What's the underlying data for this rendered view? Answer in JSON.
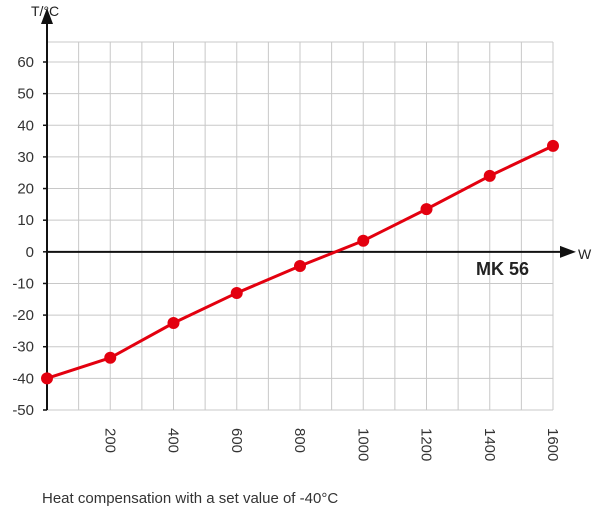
{
  "chart_data": {
    "type": "line",
    "x": [
      0,
      200,
      400,
      600,
      800,
      1000,
      1200,
      1400,
      1600
    ],
    "series": [
      {
        "values": [
          -40,
          -33.5,
          -22.5,
          -13,
          -4.5,
          3.5,
          13.5,
          24,
          33.5
        ]
      }
    ],
    "x_tick_labels": [
      "200",
      "400",
      "600",
      "800",
      "1000",
      "1200",
      "1400",
      "1600"
    ],
    "y_tick_labels": [
      "60",
      "50",
      "40",
      "30",
      "20",
      "10",
      "0",
      "-10",
      "-20",
      "-30",
      "-40",
      "-50"
    ],
    "y_ticks": [
      60,
      50,
      40,
      30,
      20,
      10,
      0,
      -10,
      -20,
      -30,
      -40,
      -50
    ],
    "x_ticks": [
      200,
      400,
      600,
      800,
      1000,
      1200,
      1400,
      1600
    ],
    "xlabel": "W",
    "ylabel": "T/°C",
    "annotation": "MK 56",
    "xlim": [
      0,
      1600
    ],
    "ylim": [
      -50,
      60
    ],
    "grid": true,
    "colors": {
      "series": "#e3000f",
      "axis": "#111111",
      "grid": "#c8c8c8"
    }
  },
  "caption": "Heat compensation with a set value of -40°C"
}
